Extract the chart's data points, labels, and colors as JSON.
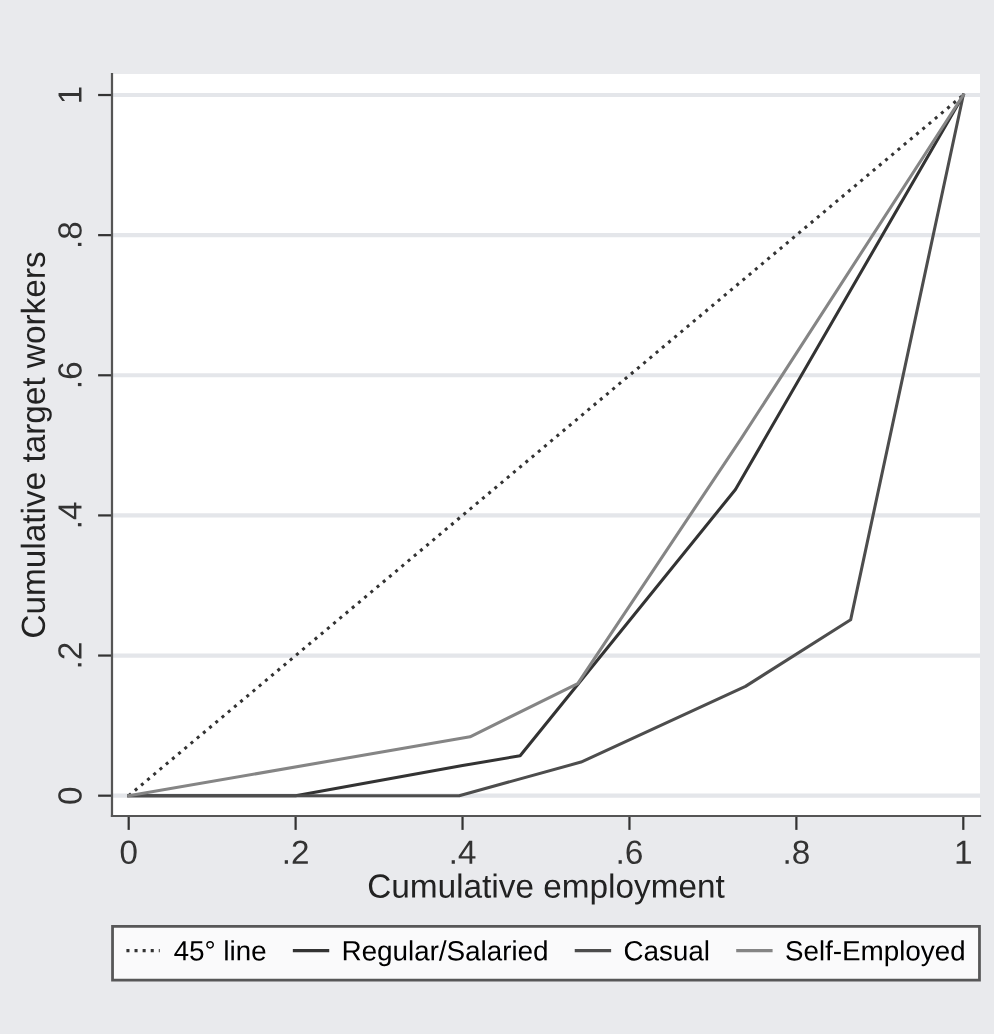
{
  "chart_data": {
    "type": "line",
    "xlabel": "Cumulative employment",
    "ylabel": "Cumulative target workers",
    "xlim": [
      -0.02,
      1.02
    ],
    "ylim": [
      -0.029,
      1.03
    ],
    "xticks": [
      0,
      {
        "value": 0.2,
        "label": ".2"
      },
      {
        "value": 0.4,
        "label": ".4"
      },
      {
        "value": 0.6,
        "label": ".6"
      },
      {
        "value": 0.8,
        "label": ".8"
      },
      1
    ],
    "yticks": [
      0,
      {
        "value": 0.2,
        "label": ".2"
      },
      {
        "value": 0.4,
        "label": ".4"
      },
      {
        "value": 0.6,
        "label": ".6"
      },
      {
        "value": 0.8,
        "label": ".8"
      },
      1
    ],
    "grid": "y",
    "legend": "bottom",
    "series": [
      {
        "name": "45° line",
        "color": "#333333",
        "line_style": "dotted",
        "x": [
          0,
          1
        ],
        "values": [
          0,
          1
        ]
      },
      {
        "name": "Regular/Salaried",
        "color": "#333333",
        "x": [
          0,
          0.2,
          0.4,
          0.469,
          0.727,
          1
        ],
        "values": [
          0,
          0,
          0.043,
          0.057,
          0.437,
          1
        ]
      },
      {
        "name": "Casual",
        "color": "#4d4d4d",
        "x": [
          0,
          0.396,
          0.542,
          0.739,
          0.865,
          1
        ],
        "values": [
          0,
          0,
          0.048,
          0.156,
          0.251,
          1
        ]
      },
      {
        "name": "Self-Employed",
        "color": "#858585",
        "x": [
          0,
          0.409,
          0.538,
          0.734,
          1
        ],
        "values": [
          0,
          0.084,
          0.16,
          0.51,
          1
        ]
      }
    ]
  }
}
